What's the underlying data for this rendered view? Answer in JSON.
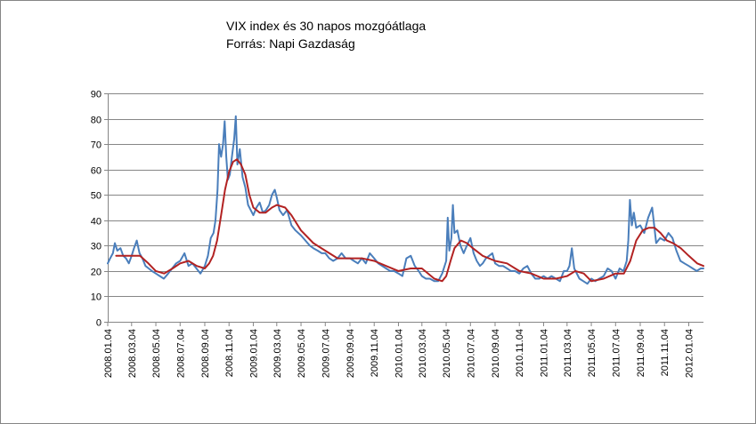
{
  "chart_data": {
    "type": "line",
    "title": "VIX index és 30 napos mozgóátlaga",
    "subtitle": "Forrás: Napi Gazdaság",
    "xlabel": "",
    "ylabel": "",
    "ylim": [
      0,
      90
    ],
    "y_ticks": [
      "0",
      "10",
      "20",
      "30",
      "40",
      "50",
      "60",
      "70",
      "80",
      "90"
    ],
    "x_ticks": [
      "2008.01.04",
      "2008.03.04",
      "2008.05.04",
      "2008.07.04",
      "2008.09.04",
      "2008.11.04",
      "2009.01.04",
      "2009.03.04",
      "2009.05.04",
      "2009.07.04",
      "2009.09.04",
      "2009.11.04",
      "2010.01.04",
      "2010.03.04",
      "2010.05.04",
      "2010.07.04",
      "2010.09.04",
      "2010.11.04",
      "2011.01.04",
      "2011.03.04",
      "2011.05.04",
      "2011.07.04",
      "2011.09.04",
      "2011.11.04",
      "2012.01.04"
    ],
    "x_range": [
      "2008.01.04",
      "2012.02.10"
    ],
    "grid": true,
    "legend": "none",
    "series": [
      {
        "color": "#4a7ebb",
        "points": [
          [
            "2008.01.04",
            23
          ],
          [
            "2008.01.10",
            25
          ],
          [
            "2008.01.17",
            27
          ],
          [
            "2008.01.22",
            31
          ],
          [
            "2008.01.28",
            28
          ],
          [
            "2008.02.05",
            29
          ],
          [
            "2008.02.12",
            26
          ],
          [
            "2008.02.19",
            25
          ],
          [
            "2008.02.26",
            23
          ],
          [
            "2008.03.04",
            26
          ],
          [
            "2008.03.10",
            29
          ],
          [
            "2008.03.17",
            32
          ],
          [
            "2008.03.24",
            27
          ],
          [
            "2008.03.31",
            25
          ],
          [
            "2008.04.08",
            22
          ],
          [
            "2008.04.16",
            21
          ],
          [
            "2008.04.24",
            20
          ],
          [
            "2008.05.04",
            19
          ],
          [
            "2008.05.14",
            18
          ],
          [
            "2008.05.24",
            17
          ],
          [
            "2008.06.04",
            19
          ],
          [
            "2008.06.14",
            21
          ],
          [
            "2008.06.24",
            23
          ],
          [
            "2008.07.04",
            24
          ],
          [
            "2008.07.15",
            27
          ],
          [
            "2008.07.25",
            22
          ],
          [
            "2008.08.04",
            23
          ],
          [
            "2008.08.14",
            21
          ],
          [
            "2008.08.24",
            19
          ],
          [
            "2008.09.04",
            22
          ],
          [
            "2008.09.12",
            26
          ],
          [
            "2008.09.19",
            33
          ],
          [
            "2008.09.26",
            35
          ],
          [
            "2008.10.01",
            40
          ],
          [
            "2008.10.06",
            52
          ],
          [
            "2008.10.10",
            70
          ],
          [
            "2008.10.15",
            65
          ],
          [
            "2008.10.20",
            70
          ],
          [
            "2008.10.24",
            79
          ],
          [
            "2008.10.28",
            65
          ],
          [
            "2008.11.01",
            56
          ],
          [
            "2008.11.06",
            58
          ],
          [
            "2008.11.12",
            66
          ],
          [
            "2008.11.17",
            72
          ],
          [
            "2008.11.21",
            81
          ],
          [
            "2008.11.25",
            62
          ],
          [
            "2008.12.01",
            68
          ],
          [
            "2008.12.08",
            57
          ],
          [
            "2008.12.15",
            53
          ],
          [
            "2008.12.22",
            46
          ],
          [
            "2009.01.04",
            42
          ],
          [
            "2009.01.12",
            45
          ],
          [
            "2009.01.20",
            47
          ],
          [
            "2009.01.28",
            43
          ],
          [
            "2009.02.05",
            44
          ],
          [
            "2009.02.13",
            46
          ],
          [
            "2009.02.20",
            50
          ],
          [
            "2009.02.27",
            52
          ],
          [
            "2009.03.04",
            49
          ],
          [
            "2009.03.11",
            44
          ],
          [
            "2009.03.20",
            42
          ],
          [
            "2009.03.30",
            44
          ],
          [
            "2009.04.10",
            38
          ],
          [
            "2009.04.20",
            36
          ],
          [
            "2009.05.04",
            34
          ],
          [
            "2009.05.15",
            32
          ],
          [
            "2009.05.26",
            30
          ],
          [
            "2009.06.04",
            29
          ],
          [
            "2009.06.15",
            28
          ],
          [
            "2009.06.25",
            27
          ],
          [
            "2009.07.04",
            27
          ],
          [
            "2009.07.14",
            25
          ],
          [
            "2009.07.24",
            24
          ],
          [
            "2009.08.04",
            25
          ],
          [
            "2009.08.14",
            27
          ],
          [
            "2009.08.24",
            25
          ],
          [
            "2009.09.04",
            25
          ],
          [
            "2009.09.14",
            24
          ],
          [
            "2009.09.24",
            23
          ],
          [
            "2009.10.04",
            25
          ],
          [
            "2009.10.14",
            23
          ],
          [
            "2009.10.24",
            27
          ],
          [
            "2009.11.04",
            25
          ],
          [
            "2009.11.14",
            23
          ],
          [
            "2009.11.24",
            22
          ],
          [
            "2009.12.04",
            21
          ],
          [
            "2009.12.14",
            20
          ],
          [
            "2009.12.24",
            20
          ],
          [
            "2010.01.04",
            19
          ],
          [
            "2010.01.14",
            18
          ],
          [
            "2010.01.24",
            25
          ],
          [
            "2010.02.04",
            26
          ],
          [
            "2010.02.14",
            22
          ],
          [
            "2010.02.24",
            20
          ],
          [
            "2010.03.04",
            18
          ],
          [
            "2010.03.14",
            17
          ],
          [
            "2010.03.24",
            17
          ],
          [
            "2010.04.04",
            16
          ],
          [
            "2010.04.14",
            16
          ],
          [
            "2010.04.24",
            19
          ],
          [
            "2010.05.04",
            24
          ],
          [
            "2010.05.08",
            41
          ],
          [
            "2010.05.12",
            28
          ],
          [
            "2010.05.17",
            33
          ],
          [
            "2010.05.21",
            46
          ],
          [
            "2010.05.25",
            35
          ],
          [
            "2010.06.01",
            36
          ],
          [
            "2010.06.09",
            30
          ],
          [
            "2010.06.17",
            27
          ],
          [
            "2010.06.25",
            30
          ],
          [
            "2010.07.04",
            33
          ],
          [
            "2010.07.12",
            27
          ],
          [
            "2010.07.20",
            24
          ],
          [
            "2010.07.28",
            22
          ],
          [
            "2010.08.04",
            23
          ],
          [
            "2010.08.12",
            25
          ],
          [
            "2010.08.20",
            26
          ],
          [
            "2010.08.28",
            27
          ],
          [
            "2010.09.04",
            23
          ],
          [
            "2010.09.14",
            22
          ],
          [
            "2010.09.24",
            22
          ],
          [
            "2010.10.04",
            21
          ],
          [
            "2010.10.14",
            20
          ],
          [
            "2010.10.24",
            20
          ],
          [
            "2010.11.04",
            19
          ],
          [
            "2010.11.14",
            21
          ],
          [
            "2010.11.24",
            22
          ],
          [
            "2010.12.04",
            19
          ],
          [
            "2010.12.14",
            17
          ],
          [
            "2010.12.24",
            17
          ],
          [
            "2011.01.04",
            18
          ],
          [
            "2011.01.14",
            17
          ],
          [
            "2011.01.24",
            18
          ],
          [
            "2011.02.04",
            17
          ],
          [
            "2011.02.14",
            16
          ],
          [
            "2011.02.24",
            20
          ],
          [
            "2011.03.04",
            20
          ],
          [
            "2011.03.10",
            22
          ],
          [
            "2011.03.16",
            29
          ],
          [
            "2011.03.22",
            21
          ],
          [
            "2011.04.04",
            17
          ],
          [
            "2011.04.14",
            16
          ],
          [
            "2011.04.24",
            15
          ],
          [
            "2011.05.04",
            17
          ],
          [
            "2011.05.14",
            16
          ],
          [
            "2011.05.24",
            17
          ],
          [
            "2011.06.04",
            18
          ],
          [
            "2011.06.14",
            21
          ],
          [
            "2011.06.24",
            20
          ],
          [
            "2011.07.04",
            17
          ],
          [
            "2011.07.14",
            21
          ],
          [
            "2011.07.24",
            20
          ],
          [
            "2011.08.01",
            24
          ],
          [
            "2011.08.05",
            32
          ],
          [
            "2011.08.09",
            48
          ],
          [
            "2011.08.14",
            38
          ],
          [
            "2011.08.19",
            43
          ],
          [
            "2011.08.25",
            37
          ],
          [
            "2011.09.04",
            38
          ],
          [
            "2011.09.14",
            35
          ],
          [
            "2011.09.24",
            41
          ],
          [
            "2011.10.04",
            45
          ],
          [
            "2011.10.14",
            31
          ],
          [
            "2011.10.24",
            33
          ],
          [
            "2011.11.04",
            32
          ],
          [
            "2011.11.14",
            35
          ],
          [
            "2011.11.24",
            33
          ],
          [
            "2011.12.04",
            28
          ],
          [
            "2011.12.14",
            24
          ],
          [
            "2011.12.24",
            23
          ],
          [
            "2012.01.04",
            22
          ],
          [
            "2012.01.14",
            21
          ],
          [
            "2012.01.24",
            20
          ],
          [
            "2012.02.03",
            21
          ],
          [
            "2012.02.10",
            21
          ]
        ]
      },
      {
        "color": "#b22222",
        "points": [
          [
            "2008.01.25",
            26
          ],
          [
            "2008.02.15",
            26
          ],
          [
            "2008.03.04",
            26
          ],
          [
            "2008.03.25",
            26
          ],
          [
            "2008.04.15",
            23
          ],
          [
            "2008.05.04",
            20
          ],
          [
            "2008.05.25",
            19
          ],
          [
            "2008.06.15",
            21
          ],
          [
            "2008.07.04",
            23
          ],
          [
            "2008.07.25",
            24
          ],
          [
            "2008.08.15",
            22
          ],
          [
            "2008.09.04",
            21
          ],
          [
            "2008.09.15",
            23
          ],
          [
            "2008.09.25",
            26
          ],
          [
            "2008.10.05",
            32
          ],
          [
            "2008.10.15",
            42
          ],
          [
            "2008.10.25",
            52
          ],
          [
            "2008.11.04",
            59
          ],
          [
            "2008.11.14",
            63
          ],
          [
            "2008.11.24",
            64
          ],
          [
            "2008.12.04",
            62
          ],
          [
            "2008.12.15",
            58
          ],
          [
            "2008.12.25",
            50
          ],
          [
            "2009.01.04",
            45
          ],
          [
            "2009.01.20",
            43
          ],
          [
            "2009.02.04",
            43
          ],
          [
            "2009.02.20",
            45
          ],
          [
            "2009.03.04",
            46
          ],
          [
            "2009.03.25",
            45
          ],
          [
            "2009.04.10",
            42
          ],
          [
            "2009.05.04",
            36
          ],
          [
            "2009.06.04",
            31
          ],
          [
            "2009.07.04",
            28
          ],
          [
            "2009.08.04",
            25
          ],
          [
            "2009.09.04",
            25
          ],
          [
            "2009.10.04",
            25
          ],
          [
            "2009.11.04",
            24
          ],
          [
            "2009.12.04",
            22
          ],
          [
            "2010.01.04",
            20
          ],
          [
            "2010.02.04",
            21
          ],
          [
            "2010.03.04",
            21
          ],
          [
            "2010.04.04",
            17
          ],
          [
            "2010.04.24",
            16
          ],
          [
            "2010.05.04",
            18
          ],
          [
            "2010.05.15",
            24
          ],
          [
            "2010.05.25",
            29
          ],
          [
            "2010.06.10",
            32
          ],
          [
            "2010.06.25",
            31
          ],
          [
            "2010.07.10",
            29
          ],
          [
            "2010.08.04",
            26
          ],
          [
            "2010.09.04",
            24
          ],
          [
            "2010.10.04",
            23
          ],
          [
            "2010.11.04",
            20
          ],
          [
            "2010.12.04",
            19
          ],
          [
            "2011.01.04",
            17
          ],
          [
            "2011.02.04",
            17
          ],
          [
            "2011.03.04",
            18
          ],
          [
            "2011.03.25",
            20
          ],
          [
            "2011.04.15",
            19
          ],
          [
            "2011.05.04",
            16
          ],
          [
            "2011.06.04",
            17
          ],
          [
            "2011.07.04",
            19
          ],
          [
            "2011.07.25",
            19
          ],
          [
            "2011.08.10",
            24
          ],
          [
            "2011.08.25",
            32
          ],
          [
            "2011.09.10",
            36
          ],
          [
            "2011.09.25",
            37
          ],
          [
            "2011.10.10",
            37
          ],
          [
            "2011.10.25",
            35
          ],
          [
            "2011.11.10",
            32
          ],
          [
            "2011.11.25",
            31
          ],
          [
            "2011.12.15",
            29
          ],
          [
            "2012.01.04",
            26
          ],
          [
            "2012.01.25",
            23
          ],
          [
            "2012.02.10",
            22
          ]
        ]
      }
    ]
  }
}
